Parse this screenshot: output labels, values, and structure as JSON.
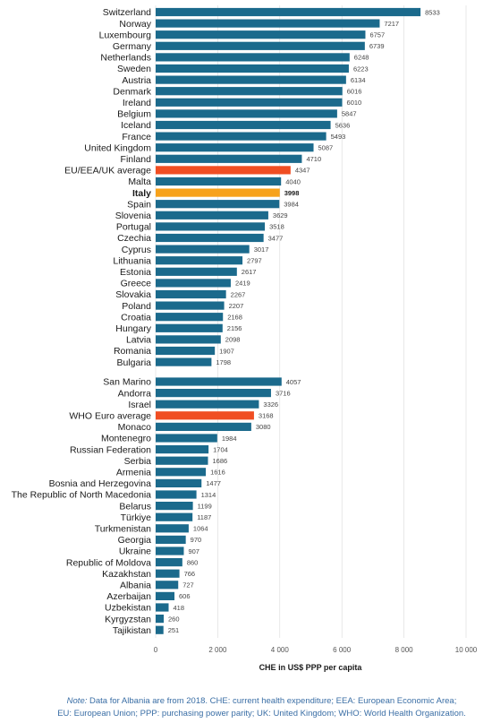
{
  "chart_data": {
    "type": "bar",
    "orientation": "horizontal",
    "xlabel": "CHE in US$ PPP per capita",
    "xlim": [
      0,
      10000
    ],
    "xticks": [
      0,
      2000,
      4000,
      6000,
      8000,
      10000
    ],
    "xtick_labels": [
      "0",
      "2 000",
      "4 000",
      "6 000",
      "8 000",
      "10 000"
    ],
    "grid": true,
    "colors": {
      "default": "#1b6a8c",
      "average": "#f04e23",
      "highlight": "#f7a21b"
    },
    "groups": [
      {
        "items": [
          {
            "category": "Switzerland",
            "value": 8533,
            "label": "8533"
          },
          {
            "category": "Norway",
            "value": 7217,
            "label": "7217"
          },
          {
            "category": "Luxembourg",
            "value": 6757,
            "label": "6757"
          },
          {
            "category": "Germany",
            "value": 6739,
            "label": "6739"
          },
          {
            "category": "Netherlands",
            "value": 6248,
            "label": "6248"
          },
          {
            "category": "Sweden",
            "value": 6223,
            "label": "6223"
          },
          {
            "category": "Austria",
            "value": 6134,
            "label": "6134"
          },
          {
            "category": "Denmark",
            "value": 6016,
            "label": "6016"
          },
          {
            "category": "Ireland",
            "value": 6010,
            "label": "6010"
          },
          {
            "category": "Belgium",
            "value": 5847,
            "label": "5847"
          },
          {
            "category": "Iceland",
            "value": 5636,
            "label": "5636"
          },
          {
            "category": "France",
            "value": 5493,
            "label": "5493"
          },
          {
            "category": "United Kingdom",
            "value": 5087,
            "label": "5087"
          },
          {
            "category": "Finland",
            "value": 4710,
            "label": "4710"
          },
          {
            "category": "EU/EEA/UK average",
            "value": 4347,
            "label": "4347",
            "kind": "average"
          },
          {
            "category": "Malta",
            "value": 4040,
            "label": "4040"
          },
          {
            "category": "Italy",
            "value": 3998,
            "label": "3998",
            "kind": "highlight"
          },
          {
            "category": "Spain",
            "value": 3984,
            "label": "3984"
          },
          {
            "category": "Slovenia",
            "value": 3629,
            "label": "3629"
          },
          {
            "category": "Portugal",
            "value": 3518,
            "label": "3518"
          },
          {
            "category": "Czechia",
            "value": 3477,
            "label": "3477"
          },
          {
            "category": "Cyprus",
            "value": 3017,
            "label": "3017"
          },
          {
            "category": "Lithuania",
            "value": 2797,
            "label": "2797"
          },
          {
            "category": "Estonia",
            "value": 2617,
            "label": "2617"
          },
          {
            "category": "Greece",
            "value": 2419,
            "label": "2419"
          },
          {
            "category": "Slovakia",
            "value": 2267,
            "label": "2267"
          },
          {
            "category": "Poland",
            "value": 2207,
            "label": "2207"
          },
          {
            "category": "Croatia",
            "value": 2168,
            "label": "2168"
          },
          {
            "category": "Hungary",
            "value": 2156,
            "label": "2156"
          },
          {
            "category": "Latvia",
            "value": 2098,
            "label": "2098"
          },
          {
            "category": "Romania",
            "value": 1907,
            "label": "1907"
          },
          {
            "category": "Bulgaria",
            "value": 1798,
            "label": "1798"
          }
        ]
      },
      {
        "items": [
          {
            "category": "San Marino",
            "value": 4057,
            "label": "4057"
          },
          {
            "category": "Andorra",
            "value": 3716,
            "label": "3716"
          },
          {
            "category": "Israel",
            "value": 3326,
            "label": "3326"
          },
          {
            "category": "WHO Euro average",
            "value": 3168,
            "label": "3168",
            "kind": "average"
          },
          {
            "category": "Monaco",
            "value": 3080,
            "label": "3080"
          },
          {
            "category": "Montenegro",
            "value": 1984,
            "label": "1984"
          },
          {
            "category": "Russian Federation",
            "value": 1704,
            "label": "1704"
          },
          {
            "category": "Serbia",
            "value": 1686,
            "label": "1686"
          },
          {
            "category": "Armenia",
            "value": 1616,
            "label": "1616"
          },
          {
            "category": "Bosnia and Herzegovina",
            "value": 1477,
            "label": "1477"
          },
          {
            "category": "The Republic of North Macedonia",
            "value": 1314,
            "label": "1314"
          },
          {
            "category": "Belarus",
            "value": 1199,
            "label": "1199"
          },
          {
            "category": "Türkiye",
            "value": 1187,
            "label": "1187"
          },
          {
            "category": "Turkmenistan",
            "value": 1064,
            "label": "1064"
          },
          {
            "category": "Georgia",
            "value": 970,
            "label": "970"
          },
          {
            "category": "Ukraine",
            "value": 907,
            "label": "907"
          },
          {
            "category": "Republic of Moldova",
            "value": 860,
            "label": "860"
          },
          {
            "category": "Kazakhstan",
            "value": 766,
            "label": "766"
          },
          {
            "category": "Albania",
            "value": 727,
            "label": "727"
          },
          {
            "category": "Azerbaijan",
            "value": 606,
            "label": "606"
          },
          {
            "category": "Uzbekistan",
            "value": 418,
            "label": "418"
          },
          {
            "category": "Kyrgyzstan",
            "value": 260,
            "label": "260"
          },
          {
            "category": "Tajikistan",
            "value": 251,
            "label": "251"
          }
        ]
      }
    ]
  },
  "footnote": {
    "note_label": "Note:",
    "line1": "Data for Albania are from 2018. CHE: current health expenditure; EEA: European Economic Area;",
    "line2": "EU: European Union; PPP: purchasing power parity; UK: United Kingdom; WHO: World Health Organization."
  }
}
